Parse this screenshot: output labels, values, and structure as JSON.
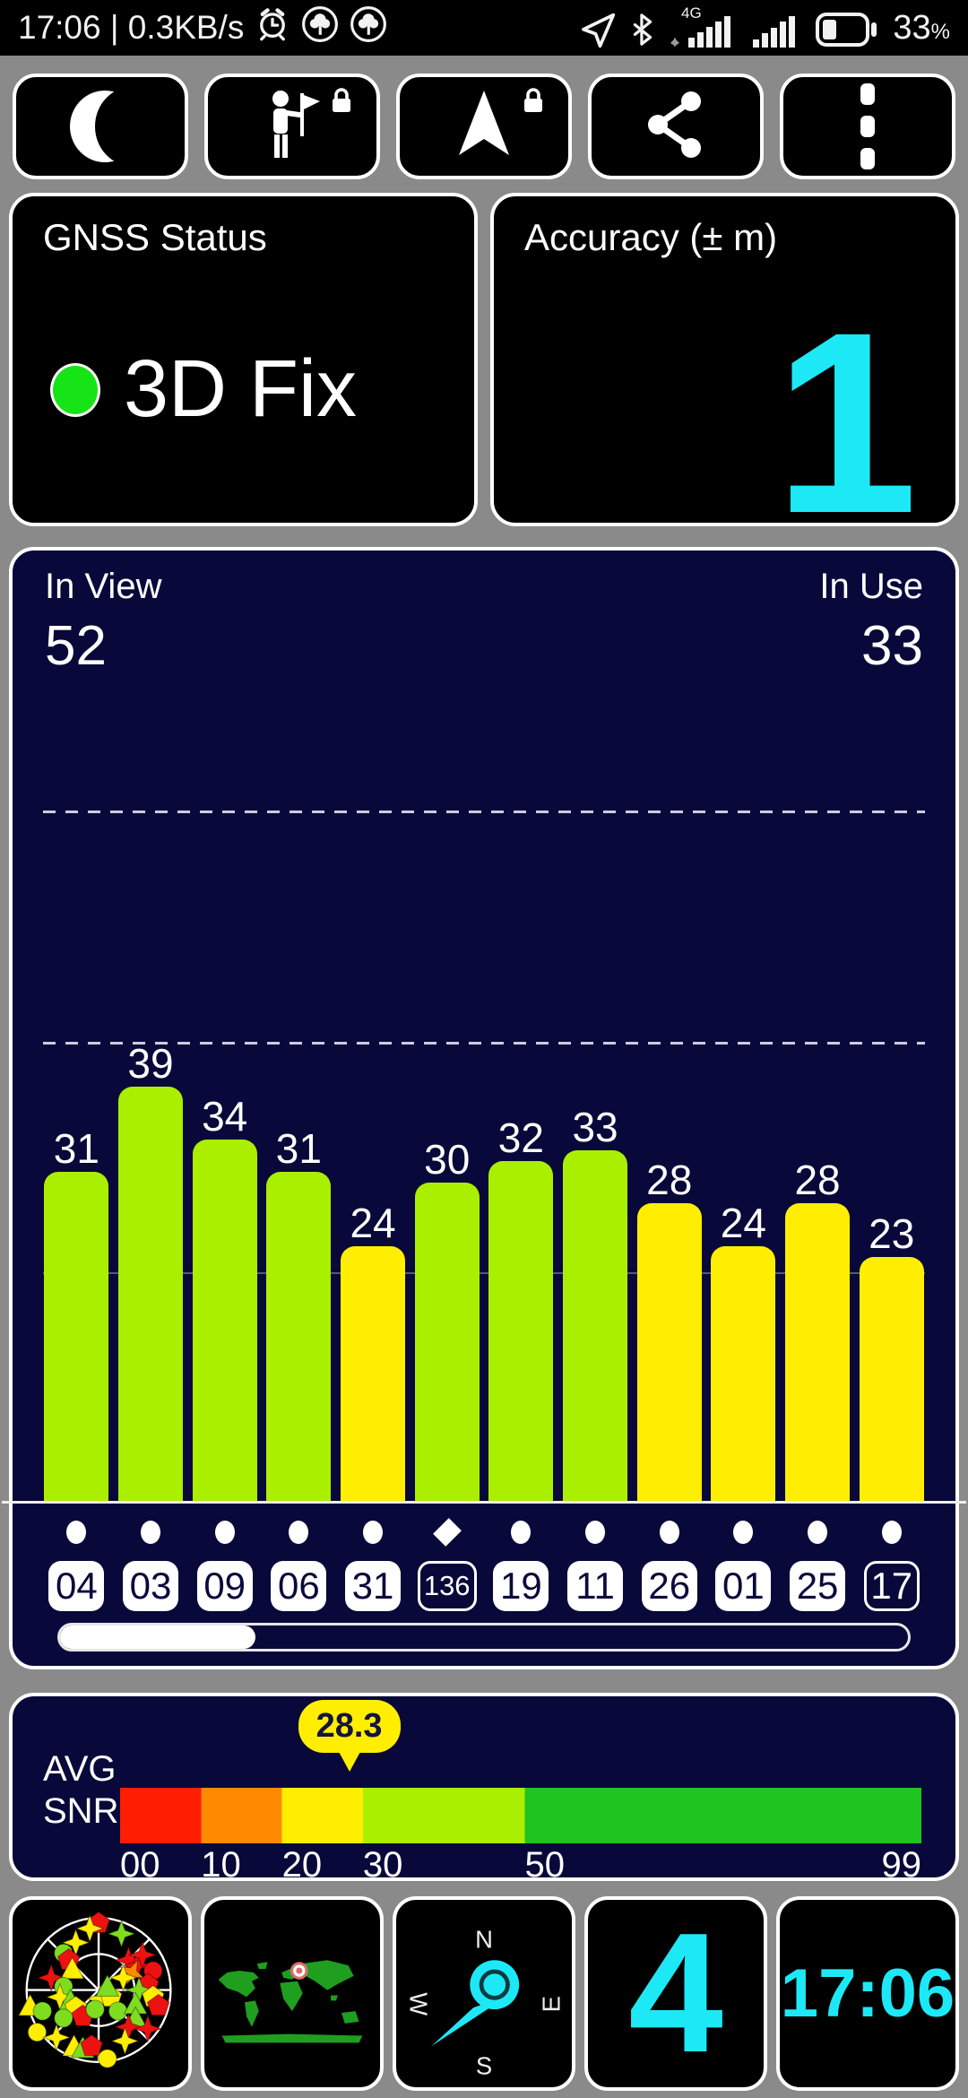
{
  "status_bar": {
    "left_text": "17:06 | 0.3KB/s",
    "network_label": "4G",
    "battery_percent": "33",
    "percent_sign": "%"
  },
  "toolbar": {
    "buttons": [
      {
        "name": "night-mode",
        "locked": false
      },
      {
        "name": "poi-flag",
        "locked": true
      },
      {
        "name": "navigation",
        "locked": true
      },
      {
        "name": "share",
        "locked": false
      },
      {
        "name": "overflow-menu",
        "locked": false
      }
    ]
  },
  "gnss": {
    "title": "GNSS Status",
    "value": "3D Fix",
    "dot_color": "#17e417"
  },
  "accuracy": {
    "title": "Accuracy (± m)",
    "value": "1",
    "color": "#1de9f6"
  },
  "chart_data": {
    "type": "bar",
    "title": "Satellite SNR bars",
    "in_view_label": "In View",
    "in_view": "52",
    "in_use_label": "In Use",
    "in_use": "33",
    "ylim": [
      0,
      89
    ],
    "grid": "2 dashed gridlines, 1 faint gridline, white baseline",
    "satellites": [
      {
        "id": "04",
        "snr": 31,
        "in_use": true,
        "marker": "circle"
      },
      {
        "id": "03",
        "snr": 39,
        "in_use": true,
        "marker": "circle"
      },
      {
        "id": "09",
        "snr": 34,
        "in_use": true,
        "marker": "circle"
      },
      {
        "id": "06",
        "snr": 31,
        "in_use": true,
        "marker": "circle"
      },
      {
        "id": "31",
        "snr": 24,
        "in_use": true,
        "marker": "circle"
      },
      {
        "id": "136",
        "snr": 30,
        "in_use": false,
        "marker": "diamond"
      },
      {
        "id": "19",
        "snr": 32,
        "in_use": true,
        "marker": "circle"
      },
      {
        "id": "11",
        "snr": 33,
        "in_use": true,
        "marker": "circle"
      },
      {
        "id": "26",
        "snr": 28,
        "in_use": true,
        "marker": "circle"
      },
      {
        "id": "01",
        "snr": 24,
        "in_use": true,
        "marker": "circle"
      },
      {
        "id": "25",
        "snr": 28,
        "in_use": true,
        "marker": "circle"
      },
      {
        "id": "17",
        "snr": 23,
        "in_use": false,
        "marker": "circle"
      }
    ],
    "bar_colors": {
      "snr_30_plus": "#aaee00",
      "snr_below_30": "#ffee00"
    },
    "scrollbar_fraction": 0.23
  },
  "avg_snr": {
    "label_top": "AVG",
    "label_bottom": "SNR",
    "value": 28.3,
    "value_label": "28.3",
    "max": 99,
    "scale_labels": [
      "00",
      "10",
      "20",
      "30",
      "50",
      "99"
    ],
    "scale_values": [
      0,
      10,
      20,
      30,
      50,
      99
    ],
    "segments": [
      {
        "from": 0,
        "to": 10,
        "color": "#ff1e00"
      },
      {
        "from": 10,
        "to": 20,
        "color": "#ff8a00"
      },
      {
        "from": 20,
        "to": 30,
        "color": "#ffee00"
      },
      {
        "from": 30,
        "to": 50,
        "color": "#aaee00"
      },
      {
        "from": 50,
        "to": 99,
        "color": "#1fc420"
      }
    ]
  },
  "tiles": {
    "skyplot": {
      "marker_colors": {
        "y": "#ffee00",
        "g": "#7fdd20",
        "r": "#ee1111",
        "o": "#ff8a00"
      },
      "markers": [
        [
          "pentagon",
          "r",
          49,
          10
        ],
        [
          "star",
          "y",
          44,
          13
        ],
        [
          "star",
          "g",
          62,
          16
        ],
        [
          "star",
          "y",
          36,
          21
        ],
        [
          "circle",
          "g",
          29,
          27
        ],
        [
          "pentagon",
          "r",
          32,
          31
        ],
        [
          "triangle",
          "y",
          34,
          36
        ],
        [
          "star",
          "r",
          22,
          41
        ],
        [
          "circle",
          "g",
          29,
          46
        ],
        [
          "star",
          "y",
          27,
          52
        ],
        [
          "triangle",
          "g",
          33,
          54
        ],
        [
          "pentagon",
          "y",
          36,
          58
        ],
        [
          "pentagon",
          "r",
          40,
          63
        ],
        [
          "triangle",
          "y",
          10,
          57
        ],
        [
          "circle",
          "g",
          17,
          60
        ],
        [
          "circle",
          "g",
          29,
          64
        ],
        [
          "circle",
          "y",
          14,
          72
        ],
        [
          "star",
          "y",
          25,
          75
        ],
        [
          "triangle",
          "y",
          35,
          80
        ],
        [
          "triangle",
          "g",
          40,
          81
        ],
        [
          "pentagon",
          "r",
          45,
          80
        ],
        [
          "circle",
          "y",
          54,
          87
        ],
        [
          "star",
          "y",
          50,
          53
        ],
        [
          "pentagon",
          "y",
          56,
          52
        ],
        [
          "triangle",
          "g",
          54,
          46
        ],
        [
          "circle",
          "g",
          47,
          59
        ],
        [
          "circle",
          "g",
          60,
          60
        ],
        [
          "star",
          "r",
          66,
          31
        ],
        [
          "star",
          "r",
          71,
          34
        ],
        [
          "flame",
          "o",
          68,
          38
        ],
        [
          "star",
          "y",
          63,
          41
        ],
        [
          "star",
          "r",
          74,
          28
        ],
        [
          "circle",
          "r",
          80,
          37
        ],
        [
          "pentagon",
          "r",
          77,
          45
        ],
        [
          "star",
          "g",
          72,
          48
        ],
        [
          "pentagon",
          "y",
          80,
          52
        ],
        [
          "pentagon",
          "r",
          83,
          57
        ],
        [
          "triangle",
          "g",
          70,
          56
        ],
        [
          "triangle",
          "g",
          70,
          64
        ],
        [
          "star",
          "r",
          66,
          69
        ],
        [
          "star",
          "r",
          77,
          70
        ],
        [
          "star",
          "y",
          64,
          77
        ]
      ]
    },
    "map": {
      "land_color": "#1f9e1f",
      "marker_color": "#d96c6c"
    },
    "compass": {
      "n": "N",
      "e": "E",
      "s": "S",
      "w": "W",
      "needle_color": "#1de9f6"
    },
    "sat_count": {
      "value": "4",
      "color": "#1de9f6"
    },
    "clock": {
      "value": "17:06",
      "color": "#1de9f6"
    }
  }
}
